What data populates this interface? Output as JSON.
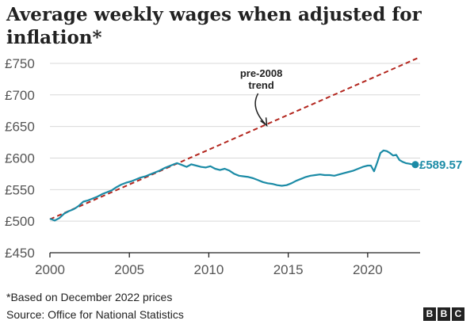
{
  "header": {
    "title": "Average weekly wages when adjusted for inflation*"
  },
  "footer": {
    "footnote": "*Based on December 2022 prices",
    "source": "Source: Office for National Statistics",
    "logo_letters": [
      "B",
      "B",
      "C"
    ]
  },
  "colors": {
    "series": "#1b8ba6",
    "trend": "#b3261e",
    "grid": "#d9d9d9",
    "axis": "#222222"
  },
  "chart_data": {
    "type": "line",
    "title": "Average weekly wages when adjusted for inflation*",
    "xlim": [
      2000,
      2023.3
    ],
    "ylim": [
      450,
      765
    ],
    "x_ticks": [
      2000,
      2005,
      2010,
      2015,
      2020
    ],
    "y_ticks": [
      450,
      500,
      550,
      600,
      650,
      700,
      750
    ],
    "y_tick_labels": [
      "£450",
      "£500",
      "£550",
      "£600",
      "£650",
      "£700",
      "£750"
    ],
    "grid": "horizontal",
    "series": [
      {
        "values_x": [
          2000.0,
          2000.3,
          2000.6,
          2000.9,
          2001.2,
          2001.5,
          2001.8,
          2002.1,
          2002.4,
          2002.7,
          2003.0,
          2003.3,
          2003.6,
          2003.9,
          2004.2,
          2004.5,
          2004.8,
          2005.1,
          2005.4,
          2005.7,
          2006.0,
          2006.3,
          2006.6,
          2006.9,
          2007.2,
          2007.5,
          2007.8,
          2008.0,
          2008.3,
          2008.6,
          2008.9,
          2009.2,
          2009.5,
          2009.8,
          2010.1,
          2010.4,
          2010.7,
          2011.0,
          2011.3,
          2011.6,
          2011.9,
          2012.2,
          2012.5,
          2012.8,
          2013.1,
          2013.4,
          2013.7,
          2014.0,
          2014.3,
          2014.6,
          2014.9,
          2015.2,
          2015.5,
          2015.8,
          2016.1,
          2016.4,
          2016.7,
          2017.0,
          2017.3,
          2017.6,
          2017.9,
          2018.2,
          2018.5,
          2018.8,
          2019.1,
          2019.4,
          2019.7,
          2020.0,
          2020.2,
          2020.4,
          2020.6,
          2020.8,
          2021.0,
          2021.2,
          2021.4,
          2021.6,
          2021.8,
          2022.0,
          2022.2,
          2022.4,
          2022.6,
          2022.8,
          2023.0
        ],
        "values": [
          504,
          501,
          505,
          512,
          516,
          519,
          524,
          531,
          533,
          536,
          539,
          543,
          546,
          549,
          554,
          558,
          561,
          563,
          566,
          569,
          571,
          574,
          577,
          580,
          584,
          587,
          590,
          592,
          589,
          586,
          590,
          588,
          586,
          585,
          587,
          583,
          581,
          583,
          580,
          575,
          572,
          571,
          570,
          568,
          565,
          562,
          560,
          559,
          557,
          556,
          557,
          560,
          564,
          567,
          570,
          572,
          573,
          574,
          573,
          573,
          572,
          574,
          576,
          578,
          580,
          583,
          586,
          588,
          588,
          579,
          593,
          608,
          612,
          611,
          608,
          604,
          605,
          597,
          594,
          592,
          591,
          590,
          589.57
        ]
      },
      {
        "name": "pre-2008 trend",
        "values_x": [
          2000,
          2023.3
        ],
        "values": [
          503,
          760
        ]
      }
    ],
    "annotations": [
      {
        "text_lines": [
          "pre-2008",
          "trend"
        ]
      },
      {
        "text": "£589.57"
      }
    ]
  }
}
